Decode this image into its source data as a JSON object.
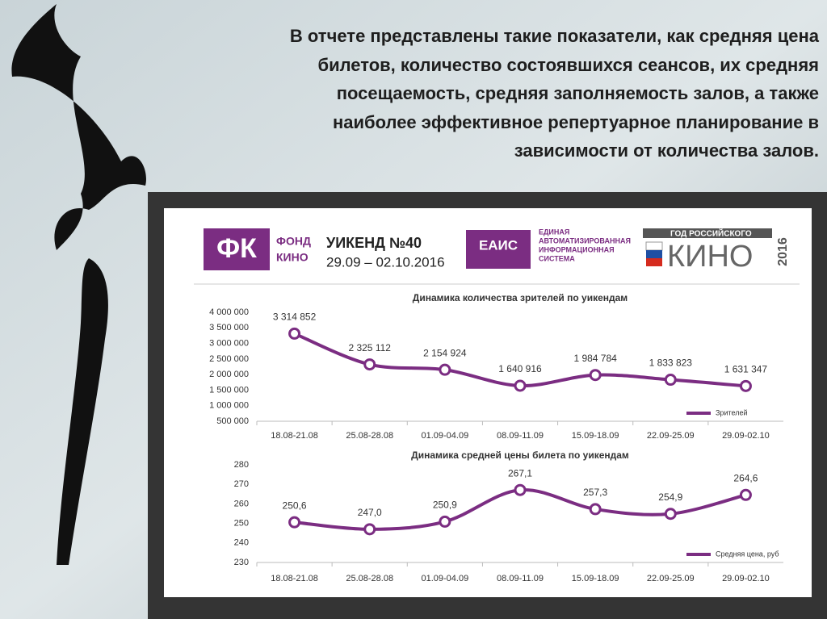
{
  "slide": {
    "heading_lines": [
      "В отчете представлены такие показатели, как средняя цена",
      "билетов, количество состоявшихся сеансов, их средняя",
      "посещаемость, средняя заполняемость залов, а также",
      "наиболее эффективное репертуарное планирование в",
      "зависимости от количества залов."
    ],
    "fk_logo": "ФК",
    "fk_name_1": "ФОНД",
    "fk_name_2": "КИНО",
    "weekend": "УИКЕНД №40",
    "weekend_dates": "29.09 – 02.10.2016",
    "eais_logo": "ЕАИС",
    "eais_lines": [
      "ЕДИНАЯ",
      "АВТОМАТИЗИРОВАННАЯ",
      "ИНФОРМАЦИОННАЯ",
      "СИСТЕМА"
    ],
    "year_top": "ГОД РОССИЙСКОГО",
    "year_kino": "КИНО",
    "year_num": "2016"
  },
  "chart_data": [
    {
      "type": "line",
      "title": "Динамика количества зрителей по уикендам",
      "categories": [
        "18.08-21.08",
        "25.08-28.08",
        "01.09-04.09",
        "08.09-11.09",
        "15.09-18.09",
        "22.09-25.09",
        "29.09-02.10"
      ],
      "series": [
        {
          "name": "Зрителей",
          "color": "#7b2d82",
          "values": [
            3314852,
            2325112,
            2154924,
            1640916,
            1984784,
            1833823,
            1631347
          ],
          "value_labels": [
            "3 314 852",
            "2 325 112",
            "2 154 924",
            "1 640 916",
            "1 984 784",
            "1 833 823",
            "1 631 347"
          ]
        }
      ],
      "ylim": [
        500000,
        4000000
      ],
      "yticks": [
        {
          "value": 500000,
          "label": "500 000"
        },
        {
          "value": 1000000,
          "label": "1 000 000"
        },
        {
          "value": 1500000,
          "label": "1 500 000"
        },
        {
          "value": 2000000,
          "label": "2 000 000"
        },
        {
          "value": 2500000,
          "label": "2 500 000"
        },
        {
          "value": 3000000,
          "label": "3 000 000"
        },
        {
          "value": 3500000,
          "label": "3 500 000"
        },
        {
          "value": 4000000,
          "label": "4 000 000"
        }
      ],
      "legend": "lower-right",
      "grid": false
    },
    {
      "type": "line",
      "title": "Динамика средней цены билета по уикендам",
      "categories": [
        "18.08-21.08",
        "25.08-28.08",
        "01.09-04.09",
        "08.09-11.09",
        "15.09-18.09",
        "22.09-25.09",
        "29.09-02.10"
      ],
      "series": [
        {
          "name": "Средняя цена, руб",
          "color": "#7b2d82",
          "values": [
            250.6,
            247.0,
            250.9,
            267.1,
            257.3,
            254.9,
            264.6
          ],
          "value_labels": [
            "250,6",
            "247,0",
            "250,9",
            "267,1",
            "257,3",
            "254,9",
            "264,6"
          ]
        }
      ],
      "ylim": [
        230,
        280
      ],
      "yticks": [
        230,
        240,
        250,
        260,
        270,
        280
      ],
      "legend": "lower-right",
      "grid": false
    }
  ]
}
